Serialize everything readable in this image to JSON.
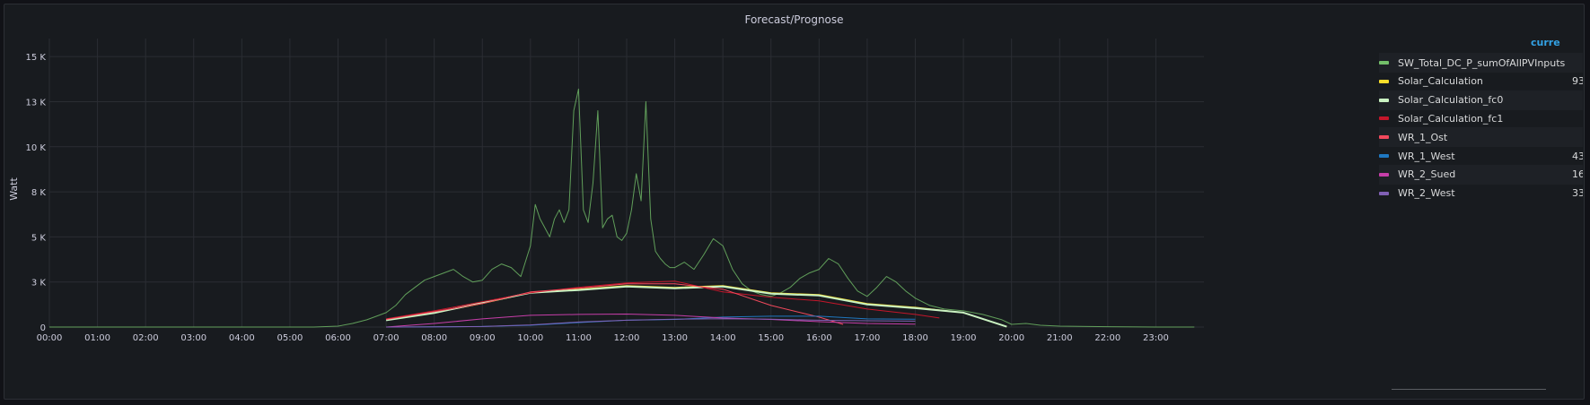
{
  "panel": {
    "title": "Forecast/Prognose"
  },
  "legend": {
    "header": "curre",
    "items": [
      {
        "name": "SW_Total_DC_P_sumOfAllPVInputs",
        "value": "",
        "color": "#73bf69"
      },
      {
        "name": "Solar_Calculation",
        "value": "93",
        "color": "#fade2a"
      },
      {
        "name": "Solar_Calculation_fc0",
        "value": "",
        "color": "#caf2c2"
      },
      {
        "name": "Solar_Calculation_fc1",
        "value": "",
        "color": "#c4162a"
      },
      {
        "name": "WR_1_Ost",
        "value": "",
        "color": "#f2495c"
      },
      {
        "name": "WR_1_West",
        "value": "43",
        "color": "#1f78c1"
      },
      {
        "name": "WR_2_Sued",
        "value": "16",
        "color": "#c63ea9"
      },
      {
        "name": "WR_2_West",
        "value": "33",
        "color": "#8060b4"
      }
    ]
  },
  "chart_data": {
    "type": "line",
    "title": "Forecast/Prognose",
    "xlabel": "",
    "ylabel": "Watt",
    "x_ticks": [
      "00:00",
      "01:00",
      "02:00",
      "03:00",
      "04:00",
      "05:00",
      "06:00",
      "07:00",
      "08:00",
      "09:00",
      "10:00",
      "11:00",
      "12:00",
      "13:00",
      "14:00",
      "15:00",
      "16:00",
      "17:00",
      "18:00",
      "19:00",
      "20:00",
      "21:00",
      "22:00",
      "23:00"
    ],
    "y_ticks": [
      {
        "label": "0",
        "value": 0
      },
      {
        "label": "3 K",
        "value": 2500
      },
      {
        "label": "5 K",
        "value": 5000
      },
      {
        "label": "8 K",
        "value": 7500
      },
      {
        "label": "10 K",
        "value": 10000
      },
      {
        "label": "13 K",
        "value": 12500
      },
      {
        "label": "15 K",
        "value": 15000
      }
    ],
    "xlim": [
      0,
      24
    ],
    "ylim": [
      0,
      16000
    ],
    "grid": true,
    "legend_position": "right",
    "series": [
      {
        "name": "SW_Total_DC_P_sumOfAllPVInputs",
        "color": "#73bf69",
        "x": [
          0,
          5.5,
          6.0,
          6.3,
          6.6,
          6.8,
          7.0,
          7.2,
          7.4,
          7.6,
          7.8,
          8.0,
          8.2,
          8.4,
          8.6,
          8.8,
          9.0,
          9.2,
          9.4,
          9.6,
          9.8,
          10.0,
          10.1,
          10.2,
          10.3,
          10.4,
          10.5,
          10.6,
          10.7,
          10.8,
          10.9,
          11.0,
          11.1,
          11.2,
          11.3,
          11.4,
          11.5,
          11.6,
          11.7,
          11.8,
          11.9,
          12.0,
          12.1,
          12.2,
          12.3,
          12.4,
          12.5,
          12.6,
          12.7,
          12.8,
          12.9,
          13.0,
          13.2,
          13.4,
          13.6,
          13.8,
          14.0,
          14.2,
          14.4,
          14.6,
          14.8,
          15.0,
          15.2,
          15.4,
          15.6,
          15.8,
          16.0,
          16.2,
          16.4,
          16.6,
          16.8,
          17.0,
          17.2,
          17.4,
          17.6,
          17.8,
          18.0,
          18.3,
          18.6,
          19.0,
          19.4,
          19.8,
          20.0,
          20.3,
          20.6,
          21.0,
          22.0,
          23.0,
          23.8
        ],
        "y": [
          0,
          0,
          50,
          200,
          400,
          600,
          800,
          1200,
          1800,
          2200,
          2600,
          2800,
          3000,
          3200,
          2800,
          2500,
          2600,
          3200,
          3500,
          3300,
          2800,
          4500,
          6800,
          6000,
          5500,
          5000,
          6000,
          6500,
          5800,
          6500,
          12000,
          13200,
          6500,
          5800,
          8000,
          12000,
          5500,
          6000,
          6200,
          5000,
          4800,
          5200,
          6500,
          8500,
          7000,
          12500,
          6000,
          4200,
          3800,
          3500,
          3300,
          3300,
          3600,
          3200,
          4000,
          4900,
          4500,
          3200,
          2400,
          2000,
          1800,
          1700,
          1900,
          2200,
          2700,
          3000,
          3200,
          3800,
          3500,
          2700,
          2000,
          1700,
          2200,
          2800,
          2500,
          2000,
          1600,
          1200,
          1000,
          900,
          700,
          400,
          150,
          200,
          100,
          50,
          20,
          0,
          0
        ]
      },
      {
        "name": "Solar_Calculation",
        "color": "#fade2a",
        "x": [
          7,
          8,
          9,
          10,
          11,
          12,
          13,
          14,
          15,
          16,
          17,
          18,
          19,
          19.9
        ],
        "y": [
          400,
          800,
          1300,
          1900,
          2100,
          2300,
          2200,
          2300,
          1900,
          1800,
          1300,
          1100,
          800,
          20
        ]
      },
      {
        "name": "Solar_Calculation_fc0",
        "color": "#caf2c2",
        "x": [
          7,
          8,
          9,
          10,
          11,
          12,
          13,
          14,
          15,
          16,
          17,
          18,
          19,
          19.9
        ],
        "y": [
          380,
          780,
          1350,
          1900,
          2050,
          2250,
          2150,
          2250,
          1850,
          1750,
          1250,
          1050,
          800,
          20
        ]
      },
      {
        "name": "Solar_Calculation_fc1",
        "color": "#c4162a",
        "x": [
          7,
          8,
          9,
          10,
          11,
          12,
          13,
          14,
          15,
          16,
          17,
          18,
          18.5
        ],
        "y": [
          450,
          900,
          1400,
          1900,
          2200,
          2450,
          2550,
          1950,
          1650,
          1450,
          1000,
          700,
          500
        ]
      },
      {
        "name": "WR_1_Ost",
        "color": "#f2495c",
        "x": [
          7,
          8,
          9,
          10,
          11,
          12,
          13,
          14,
          15,
          16,
          16.5
        ],
        "y": [
          420,
          850,
          1300,
          1950,
          2150,
          2400,
          2400,
          2100,
          1200,
          550,
          150
        ]
      },
      {
        "name": "WR_1_West",
        "color": "#1f78c1",
        "x": [
          7,
          8,
          9,
          10,
          11,
          12,
          13,
          14,
          15,
          16,
          17,
          18
        ],
        "y": [
          0,
          10,
          30,
          100,
          250,
          380,
          420,
          550,
          600,
          600,
          450,
          430
        ]
      },
      {
        "name": "WR_2_Sued",
        "color": "#c63ea9",
        "x": [
          7,
          8,
          9,
          10,
          11,
          12,
          13,
          14,
          15,
          16,
          17,
          18
        ],
        "y": [
          0,
          200,
          450,
          650,
          700,
          720,
          650,
          500,
          420,
          300,
          200,
          160
        ]
      },
      {
        "name": "WR_2_West",
        "color": "#8060b4",
        "x": [
          7,
          8,
          9,
          10,
          11,
          12,
          13,
          14,
          15,
          16,
          17,
          18
        ],
        "y": [
          0,
          10,
          30,
          120,
          280,
          380,
          430,
          460,
          430,
          380,
          350,
          330
        ]
      }
    ]
  }
}
